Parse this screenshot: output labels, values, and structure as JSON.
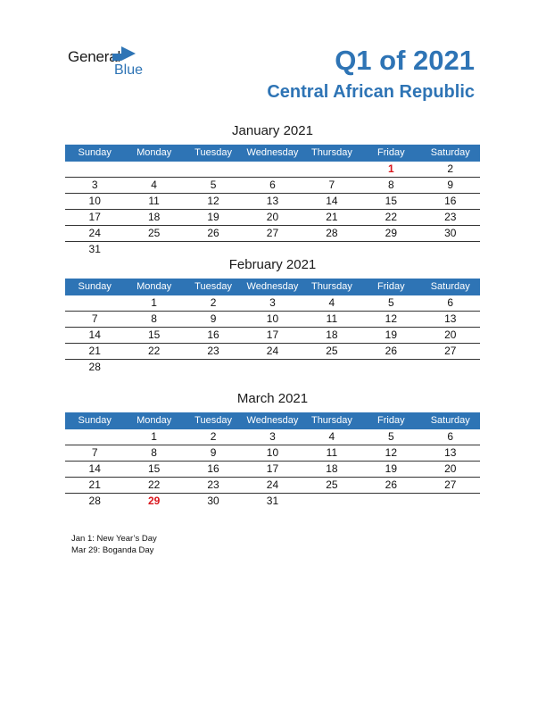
{
  "logo": {
    "general": "General",
    "blue": "Blue"
  },
  "header": {
    "title": "Q1 of 2021",
    "country": "Central African Republic"
  },
  "weekdays": [
    "Sunday",
    "Monday",
    "Tuesday",
    "Wednesday",
    "Thursday",
    "Friday",
    "Saturday"
  ],
  "accent_color": "#2e74b5",
  "holiday_color": "#d9161c",
  "months": [
    {
      "title": "January 2021",
      "weeks": [
        [
          "",
          "",
          "",
          "",
          "",
          "1",
          "2"
        ],
        [
          "3",
          "4",
          "5",
          "6",
          "7",
          "8",
          "9"
        ],
        [
          "10",
          "11",
          "12",
          "13",
          "14",
          "15",
          "16"
        ],
        [
          "17",
          "18",
          "19",
          "20",
          "21",
          "22",
          "23"
        ],
        [
          "24",
          "25",
          "26",
          "27",
          "28",
          "29",
          "30"
        ],
        [
          "31",
          "",
          "",
          "",
          "",
          "",
          ""
        ]
      ],
      "holidays": [
        "1"
      ]
    },
    {
      "title": "February 2021",
      "weeks": [
        [
          "",
          "1",
          "2",
          "3",
          "4",
          "5",
          "6"
        ],
        [
          "7",
          "8",
          "9",
          "10",
          "11",
          "12",
          "13"
        ],
        [
          "14",
          "15",
          "16",
          "17",
          "18",
          "19",
          "20"
        ],
        [
          "21",
          "22",
          "23",
          "24",
          "25",
          "26",
          "27"
        ],
        [
          "28",
          "",
          "",
          "",
          "",
          "",
          ""
        ]
      ],
      "holidays": []
    },
    {
      "title": "March 2021",
      "weeks": [
        [
          "",
          "1",
          "2",
          "3",
          "4",
          "5",
          "6"
        ],
        [
          "7",
          "8",
          "9",
          "10",
          "11",
          "12",
          "13"
        ],
        [
          "14",
          "15",
          "16",
          "17",
          "18",
          "19",
          "20"
        ],
        [
          "21",
          "22",
          "23",
          "24",
          "25",
          "26",
          "27"
        ],
        [
          "28",
          "29",
          "30",
          "31",
          "",
          "",
          ""
        ]
      ],
      "holidays": [
        "29"
      ]
    }
  ],
  "notes": [
    "Jan 1: New Year’s Day",
    "Mar 29: Boganda Day"
  ]
}
